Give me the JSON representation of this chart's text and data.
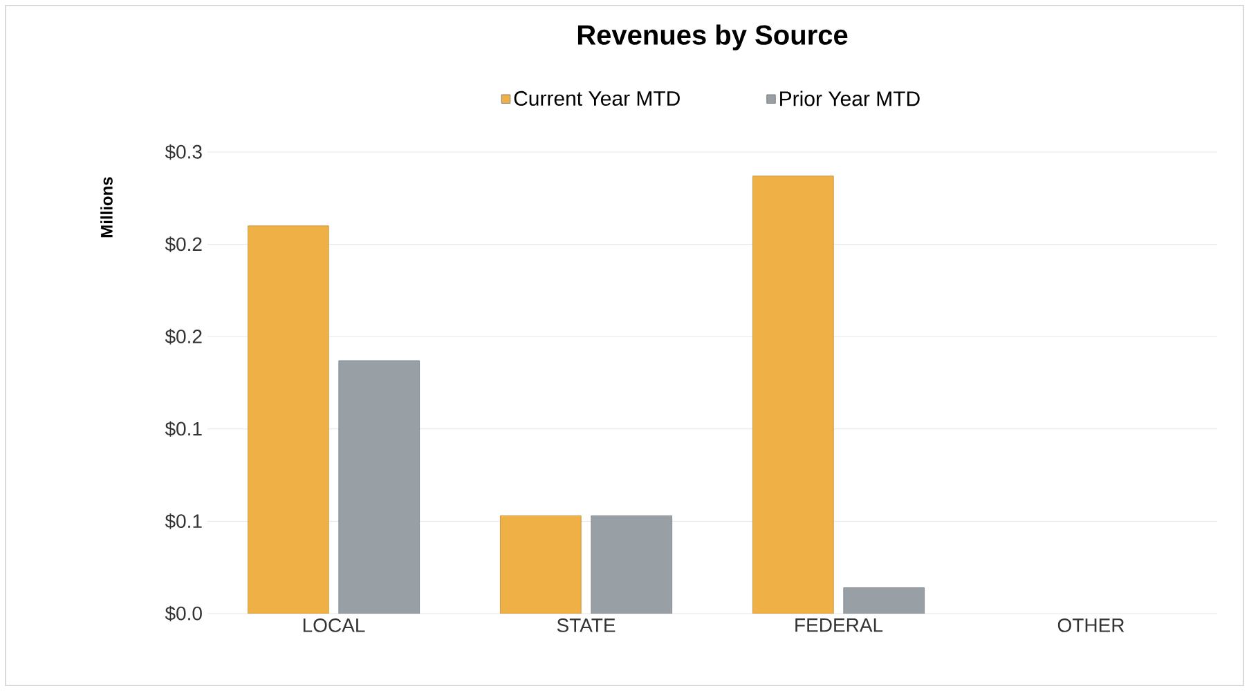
{
  "chart_data": {
    "type": "bar",
    "title": "Revenues by Source",
    "ylabel": "Millions",
    "categories": [
      "LOCAL",
      "STATE",
      "FEDERAL",
      "OTHER"
    ],
    "series": [
      {
        "name": "Current Year MTD",
        "color": "#efb045",
        "values": [
          0.21,
          0.053,
          0.237,
          null
        ]
      },
      {
        "name": "Prior Year MTD",
        "color": "#98a0a6",
        "values": [
          0.137,
          0.053,
          0.014,
          null
        ]
      }
    ],
    "ylim": [
      0,
      0.25
    ],
    "yticks": [
      {
        "value": 0,
        "label": "$0.0"
      },
      {
        "value": 0.05,
        "label": "$0.1"
      },
      {
        "value": 0.1,
        "label": "$0.1"
      },
      {
        "value": 0.15,
        "label": "$0.2"
      },
      {
        "value": 0.2,
        "label": "$0.2"
      },
      {
        "value": 0.25,
        "label": "$0.3"
      }
    ],
    "grid": "y",
    "legend": "top"
  }
}
